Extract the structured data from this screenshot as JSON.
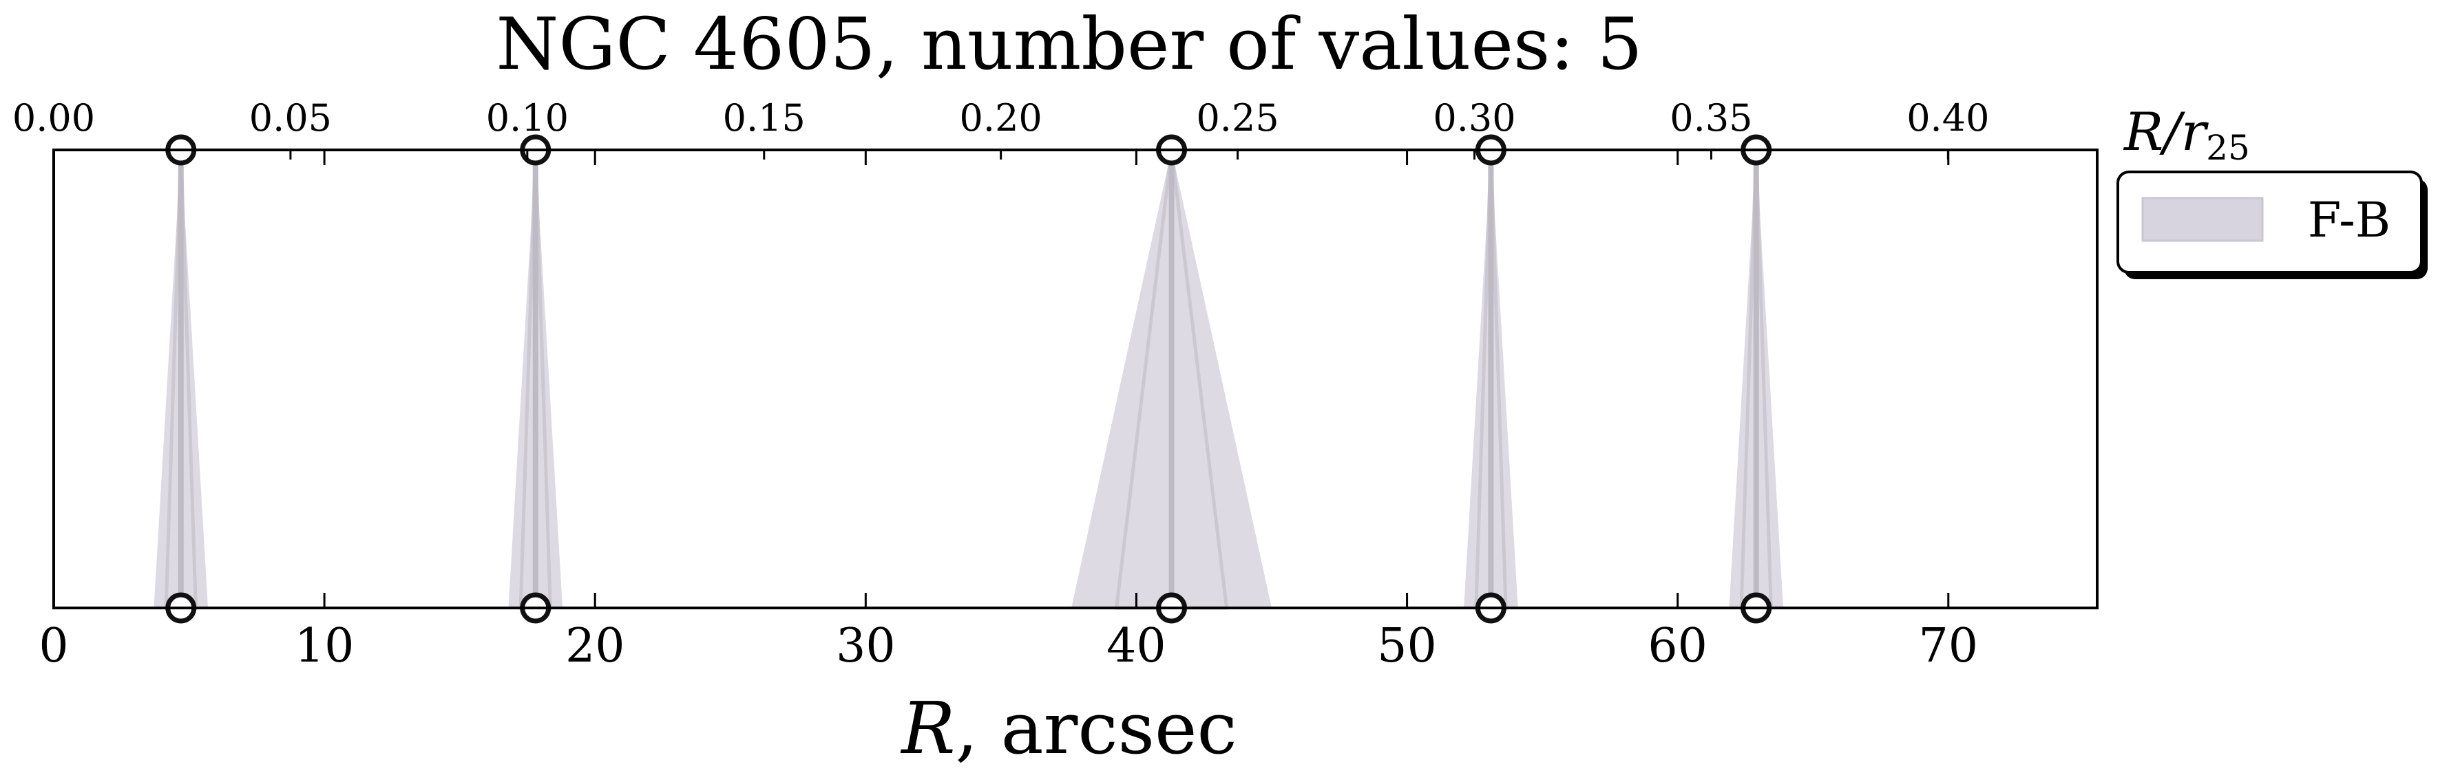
{
  "chart_data": {
    "type": "scatter",
    "title": "NGC 4605, number of values: 5",
    "xlabel": "$R$, arcsec",
    "xlabel_italic": "R",
    "xlabel_rest": ", arcsec",
    "top_axis_label": "$R/r_{25}$",
    "top_axis_label_main": "R/r",
    "top_axis_label_sub": "25",
    "xlim": [
      0,
      75.5
    ],
    "top_xlim": [
      0,
      0.4315
    ],
    "bottom_ticks": [
      "0",
      "10",
      "20",
      "30",
      "40",
      "50",
      "60",
      "70"
    ],
    "top_ticks": [
      "0.00",
      "0.05",
      "0.10",
      "0.15",
      "0.20",
      "0.25",
      "0.30",
      "0.35",
      "0.40"
    ],
    "legend": {
      "placement": "outside-right",
      "entries": [
        "F-B"
      ]
    },
    "series": [
      {
        "name": "F-B",
        "color": "#d7d4df",
        "x": [
          4.7,
          17.8,
          41.3,
          53.1,
          62.9
        ],
        "widths": [
          1.0,
          1.0,
          3.7,
          1.0,
          1.0
        ]
      }
    ],
    "colors": {
      "shade": "#d7d4df",
      "stem": "#bdbac4",
      "marker_edge": "#111111",
      "frame": "#000000"
    }
  }
}
